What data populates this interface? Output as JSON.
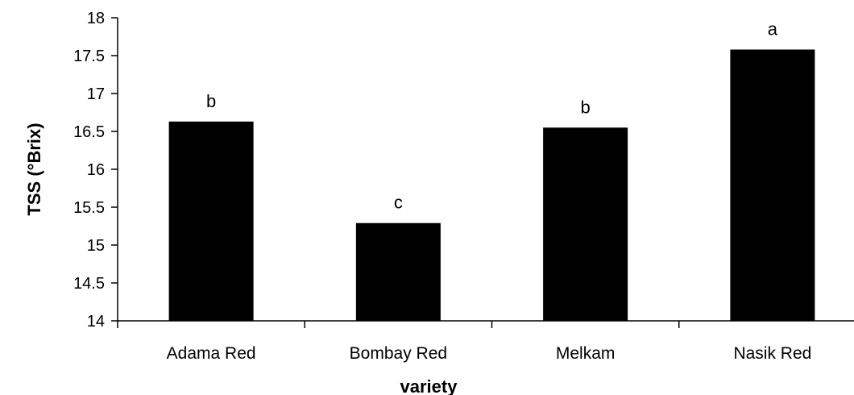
{
  "chart_data": {
    "type": "bar",
    "title": "",
    "xlabel": "variety",
    "ylabel": "TSS (°Brix)",
    "categories": [
      "Adama Red",
      "Bombay Red",
      "Melkam",
      "Nasik Red"
    ],
    "values": [
      16.63,
      15.29,
      16.55,
      17.58
    ],
    "significance_letters": [
      "b",
      "c",
      "b",
      "a"
    ],
    "ylim": [
      14,
      18
    ],
    "yticks": [
      "14",
      "14.5",
      "15",
      "15.5",
      "16",
      "16.5",
      "17",
      "17.5",
      "18"
    ],
    "grid": false,
    "legend": "none",
    "bar_color": "#000000"
  }
}
